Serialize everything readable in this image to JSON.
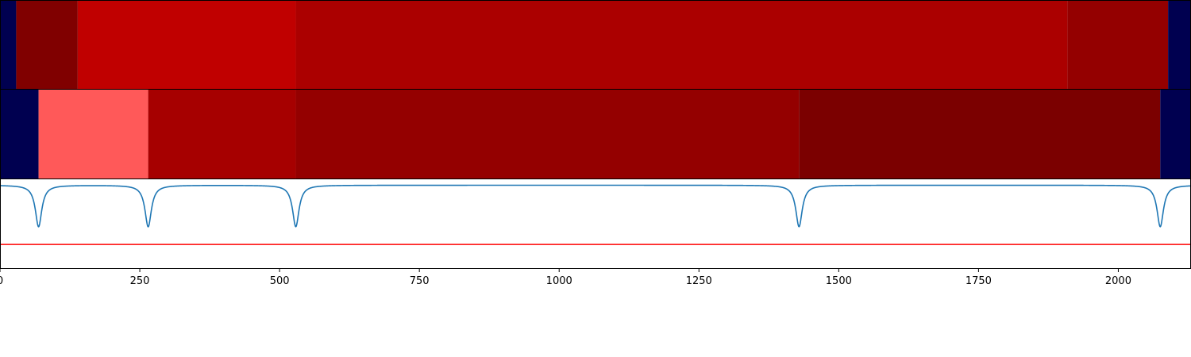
{
  "chart_data": [
    {
      "type": "heatmap",
      "title": "",
      "xlim": [
        0,
        2130
      ],
      "segments": [
        {
          "x0": 0,
          "x1": 29,
          "color": "#000050"
        },
        {
          "x0": 29,
          "x1": 139,
          "color": "#800000"
        },
        {
          "x0": 139,
          "x1": 529,
          "color": "#c00000"
        },
        {
          "x0": 529,
          "x1": 1909,
          "color": "#ab0000"
        },
        {
          "x0": 1909,
          "x1": 2089,
          "color": "#940000"
        },
        {
          "x0": 2089,
          "x1": 2130,
          "color": "#000050"
        }
      ]
    },
    {
      "type": "heatmap",
      "title": "",
      "xlim": [
        0,
        2130
      ],
      "segments": [
        {
          "x0": 0,
          "x1": 69,
          "color": "#000050"
        },
        {
          "x0": 69,
          "x1": 265,
          "color": "#ff5959"
        },
        {
          "x0": 265,
          "x1": 529,
          "color": "#a60000"
        },
        {
          "x0": 529,
          "x1": 1429,
          "color": "#940000"
        },
        {
          "x0": 1429,
          "x1": 2075,
          "color": "#7b0000"
        },
        {
          "x0": 2075,
          "x1": 2130,
          "color": "#000050"
        }
      ]
    },
    {
      "type": "line",
      "title": "",
      "xlabel": "",
      "ylabel": "",
      "xlim": [
        0,
        2130
      ],
      "ylim": [
        -1.4,
        0.1
      ],
      "dip_centers": [
        69,
        265,
        529,
        1429,
        2075
      ],
      "series": [
        {
          "color": "#1f77b4",
          "baseline": 0,
          "dip_depth": -0.7,
          "dip_width": 7
        },
        {
          "color": "#ff0000",
          "constant": -1.0
        }
      ],
      "xticks": [
        0,
        250,
        500,
        750,
        1000,
        1250,
        1500,
        1750,
        2000
      ],
      "xtick_labels": [
        "0",
        "250",
        "500",
        "750",
        "1000",
        "1250",
        "1500",
        "1750",
        "2000"
      ]
    }
  ]
}
